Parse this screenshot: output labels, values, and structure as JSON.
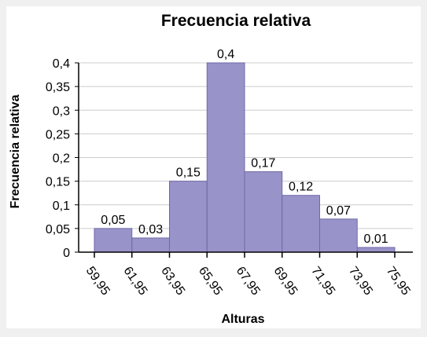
{
  "chart_data": {
    "type": "bar",
    "title": "Frecuencia relativa",
    "xlabel": "Alturas",
    "ylabel": "Frecuencia relativa",
    "bin_edges": [
      59.95,
      61.95,
      63.95,
      65.95,
      67.95,
      69.95,
      71.95,
      73.95,
      75.95
    ],
    "x_tick_labels": [
      "59,95",
      "61,95",
      "63,95",
      "65,95",
      "67,95",
      "69,95",
      "71,95",
      "73,95",
      "75,95"
    ],
    "values": [
      0.05,
      0.03,
      0.15,
      0.4,
      0.17,
      0.12,
      0.07,
      0.01
    ],
    "data_labels": [
      "0,05",
      "0,03",
      "0,15",
      "0,4",
      "0,17",
      "0,12",
      "0,07",
      "0,01"
    ],
    "ylim": [
      0,
      0.4
    ],
    "y_ticks": [
      0,
      0.05,
      0.1,
      0.15,
      0.2,
      0.25,
      0.3,
      0.35,
      0.4
    ],
    "y_tick_labels": [
      "0",
      "0,05",
      "0,1",
      "0,15",
      "0,2",
      "0,25",
      "0,3",
      "0,35",
      "0,4"
    ],
    "grid": true,
    "legend": "none",
    "colors": {
      "bar_fill": "#9893c8",
      "bar_stroke": "#6f6aa8",
      "grid": "#cccccc",
      "axis": "#000000",
      "background": "#ffffff"
    }
  }
}
